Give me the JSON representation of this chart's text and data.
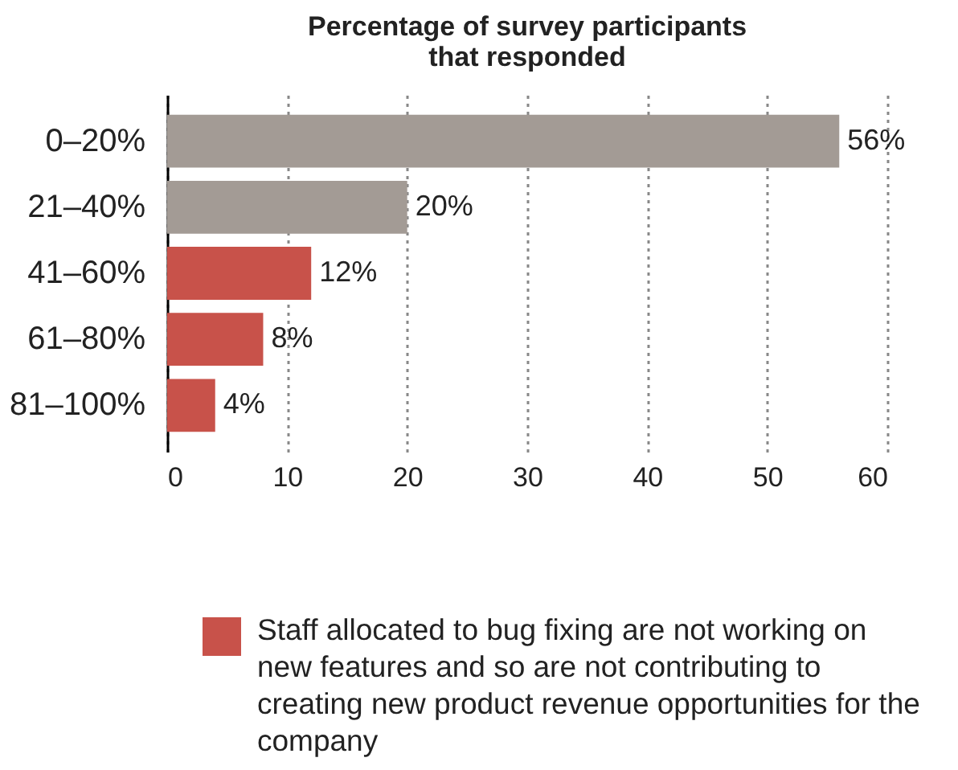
{
  "chart_data": {
    "type": "bar",
    "orientation": "horizontal",
    "title": "Percentage of survey participants\nthat responded",
    "categories": [
      "0–20%",
      "21–40%",
      "41–60%",
      "61–80%",
      "81–100%"
    ],
    "values": [
      56,
      20,
      12,
      8,
      4
    ],
    "colors": [
      "#a39b95",
      "#a39b95",
      "#c8524a",
      "#c8524a",
      "#c8524a"
    ],
    "value_labels": [
      "56%",
      "20%",
      "12%",
      "8%",
      "4%"
    ],
    "xlim": [
      0,
      60
    ],
    "xticks": [
      0,
      10,
      20,
      30,
      40,
      50,
      60
    ],
    "grid": "x",
    "annotations": [
      "Staff allocated to bug fixing are not working on new features and so are not contributing to creating new product revenue opportunities for the company"
    ]
  }
}
